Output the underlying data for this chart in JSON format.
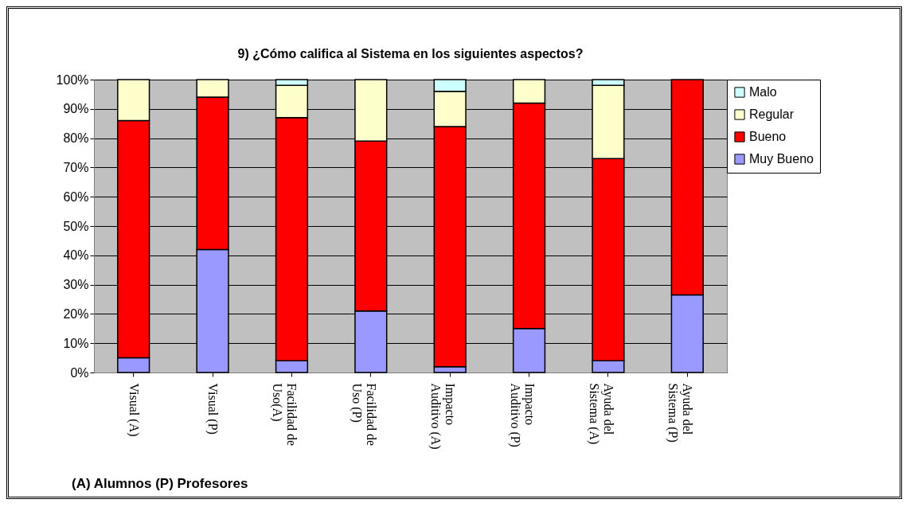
{
  "chart_data": {
    "type": "bar",
    "title": "9) ¿Cómo califica al Sistema en los siguientes aspectos?",
    "categories": [
      "Visual (A)",
      "Visual (P)",
      "Facilidad de Uso(A)",
      "Facilidad de Uso (P)",
      "Impacto Auditivo (A)",
      "Impacto Auditivo (P)",
      "Ayuda del Sistema (A)",
      "Ayuda del Sistema (P)"
    ],
    "series": [
      {
        "name": "Muy Bueno",
        "color": "#9999ff",
        "values": [
          5,
          42,
          4,
          21,
          2,
          15,
          4,
          26.5
        ]
      },
      {
        "name": "Bueno",
        "color": "#ff0000",
        "values": [
          81,
          52,
          83,
          58,
          82,
          77,
          69,
          73.5
        ]
      },
      {
        "name": "Regular",
        "color": "#ffffcc",
        "values": [
          14,
          6,
          11,
          21,
          12,
          8,
          25,
          null
        ]
      },
      {
        "name": "Malo",
        "color": "#ccffff",
        "values": [
          null,
          null,
          2,
          null,
          4,
          null,
          2,
          null
        ]
      }
    ],
    "stacked": true,
    "ylim": [
      0,
      100
    ],
    "yticks": [
      {
        "value": 0,
        "label": "0%"
      },
      {
        "value": 10,
        "label": "10%"
      },
      {
        "value": 20,
        "label": "20%"
      },
      {
        "value": 30,
        "label": "30%"
      },
      {
        "value": 40,
        "label": "40%"
      },
      {
        "value": 50,
        "label": "50%"
      },
      {
        "value": 60,
        "label": "60%"
      },
      {
        "value": 70,
        "label": "70%"
      },
      {
        "value": 80,
        "label": "80%"
      },
      {
        "value": 90,
        "label": "90%"
      },
      {
        "value": 100,
        "label": "100%"
      }
    ],
    "grid": "y",
    "legend": "right",
    "annotations": [
      "(A) Alumnos (P) Profesores"
    ]
  }
}
